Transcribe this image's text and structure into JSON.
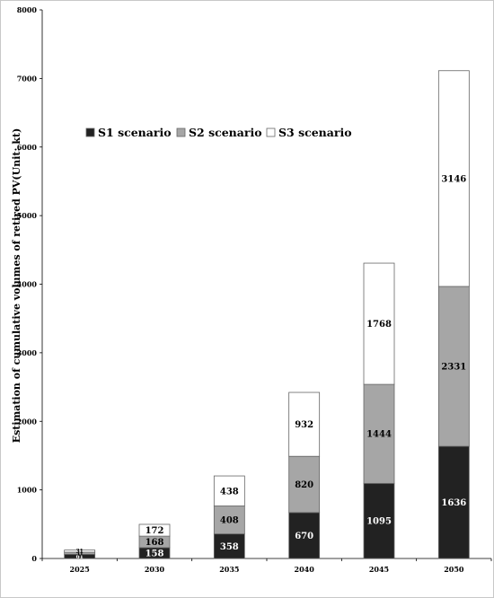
{
  "chart_data": {
    "type": "bar",
    "stacked": true,
    "categories": [
      "2025",
      "2030",
      "2035",
      "2040",
      "2045",
      "2050"
    ],
    "series": [
      {
        "name": "S1 scenario",
        "color": "#222222",
        "label_color": "#ffffff",
        "values": [
          61,
          158,
          358,
          670,
          1095,
          1636
        ]
      },
      {
        "name": "S2 scenario",
        "color": "#a6a6a6",
        "label_color": "#000000",
        "values": [
          31,
          168,
          408,
          820,
          1444,
          2331
        ]
      },
      {
        "name": "S3 scenario",
        "color": "#ffffff",
        "label_color": "#000000",
        "values": [
          31,
          172,
          438,
          932,
          1768,
          3146
        ]
      }
    ],
    "data_labels": [
      [
        "61",
        "158",
        "358",
        "670",
        "1095",
        "1636"
      ],
      [
        "31",
        "168",
        "408",
        "820",
        "1444",
        "2331"
      ],
      [
        "31",
        "172",
        "438",
        "932",
        "1768",
        "3146"
      ]
    ],
    "ylabel": "Estimation of cumulative volumes of retired PV(Unit: kt)",
    "xlabel": "",
    "title": "",
    "ylim": [
      0,
      8000
    ],
    "yticks": [
      0,
      1000,
      2000,
      3000,
      4000,
      5000,
      6000,
      7000,
      8000
    ],
    "grid": false,
    "legend_position": "top-left"
  }
}
